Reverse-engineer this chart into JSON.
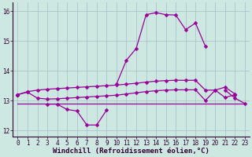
{
  "xlabel": "Windchill (Refroidissement éolien,°C)",
  "background_color": "#cce8e0",
  "grid_color": "#aabbcc",
  "line_color": "#990099",
  "x": [
    0,
    1,
    2,
    3,
    4,
    5,
    6,
    7,
    8,
    9,
    10,
    11,
    12,
    13,
    14,
    15,
    16,
    17,
    18,
    19,
    20,
    21,
    22,
    23
  ],
  "series1": [
    13.2,
    13.3,
    13.35,
    13.38,
    13.4,
    13.42,
    13.44,
    13.46,
    13.48,
    13.5,
    13.52,
    13.55,
    13.58,
    13.62,
    13.65,
    13.67,
    13.68,
    13.68,
    13.68,
    13.35,
    13.35,
    13.45,
    13.22,
    null
  ],
  "series2": [
    13.2,
    13.28,
    13.08,
    13.05,
    13.06,
    13.08,
    13.1,
    13.12,
    13.14,
    13.16,
    13.18,
    13.22,
    13.26,
    13.3,
    13.33,
    13.35,
    13.36,
    13.36,
    13.36,
    13.0,
    13.35,
    13.1,
    13.2,
    null
  ],
  "series3": [
    13.2,
    null,
    null,
    12.88,
    12.88,
    12.7,
    12.65,
    12.18,
    12.18,
    12.68,
    null,
    null,
    null,
    null,
    null,
    null,
    null,
    null,
    null,
    null,
    null,
    null,
    null,
    null
  ],
  "series4": [
    13.2,
    null,
    null,
    null,
    null,
    null,
    null,
    null,
    null,
    null,
    13.55,
    14.35,
    14.75,
    15.88,
    15.95,
    15.88,
    15.87,
    15.38,
    15.6,
    14.82,
    null,
    13.35,
    13.08,
    12.9
  ],
  "series5": [
    12.9,
    12.9,
    12.9,
    12.9,
    12.9,
    12.9,
    12.9,
    12.9,
    12.9,
    12.9,
    12.9,
    12.9,
    12.9,
    12.9,
    12.9,
    12.9,
    12.9,
    12.9,
    12.9,
    12.9,
    12.9,
    12.9,
    12.9,
    12.9
  ],
  "ylim": [
    11.8,
    16.3
  ],
  "xlim": [
    -0.5,
    23.5
  ],
  "yticks": [
    12,
    13,
    14,
    15,
    16
  ],
  "xticks": [
    0,
    1,
    2,
    3,
    4,
    5,
    6,
    7,
    8,
    9,
    10,
    11,
    12,
    13,
    14,
    15,
    16,
    17,
    18,
    19,
    20,
    21,
    22,
    23
  ],
  "marker": "D",
  "markersize": 2.5,
  "linewidth": 0.9,
  "tick_fontsize": 5.5,
  "xlabel_fontsize": 6.5
}
